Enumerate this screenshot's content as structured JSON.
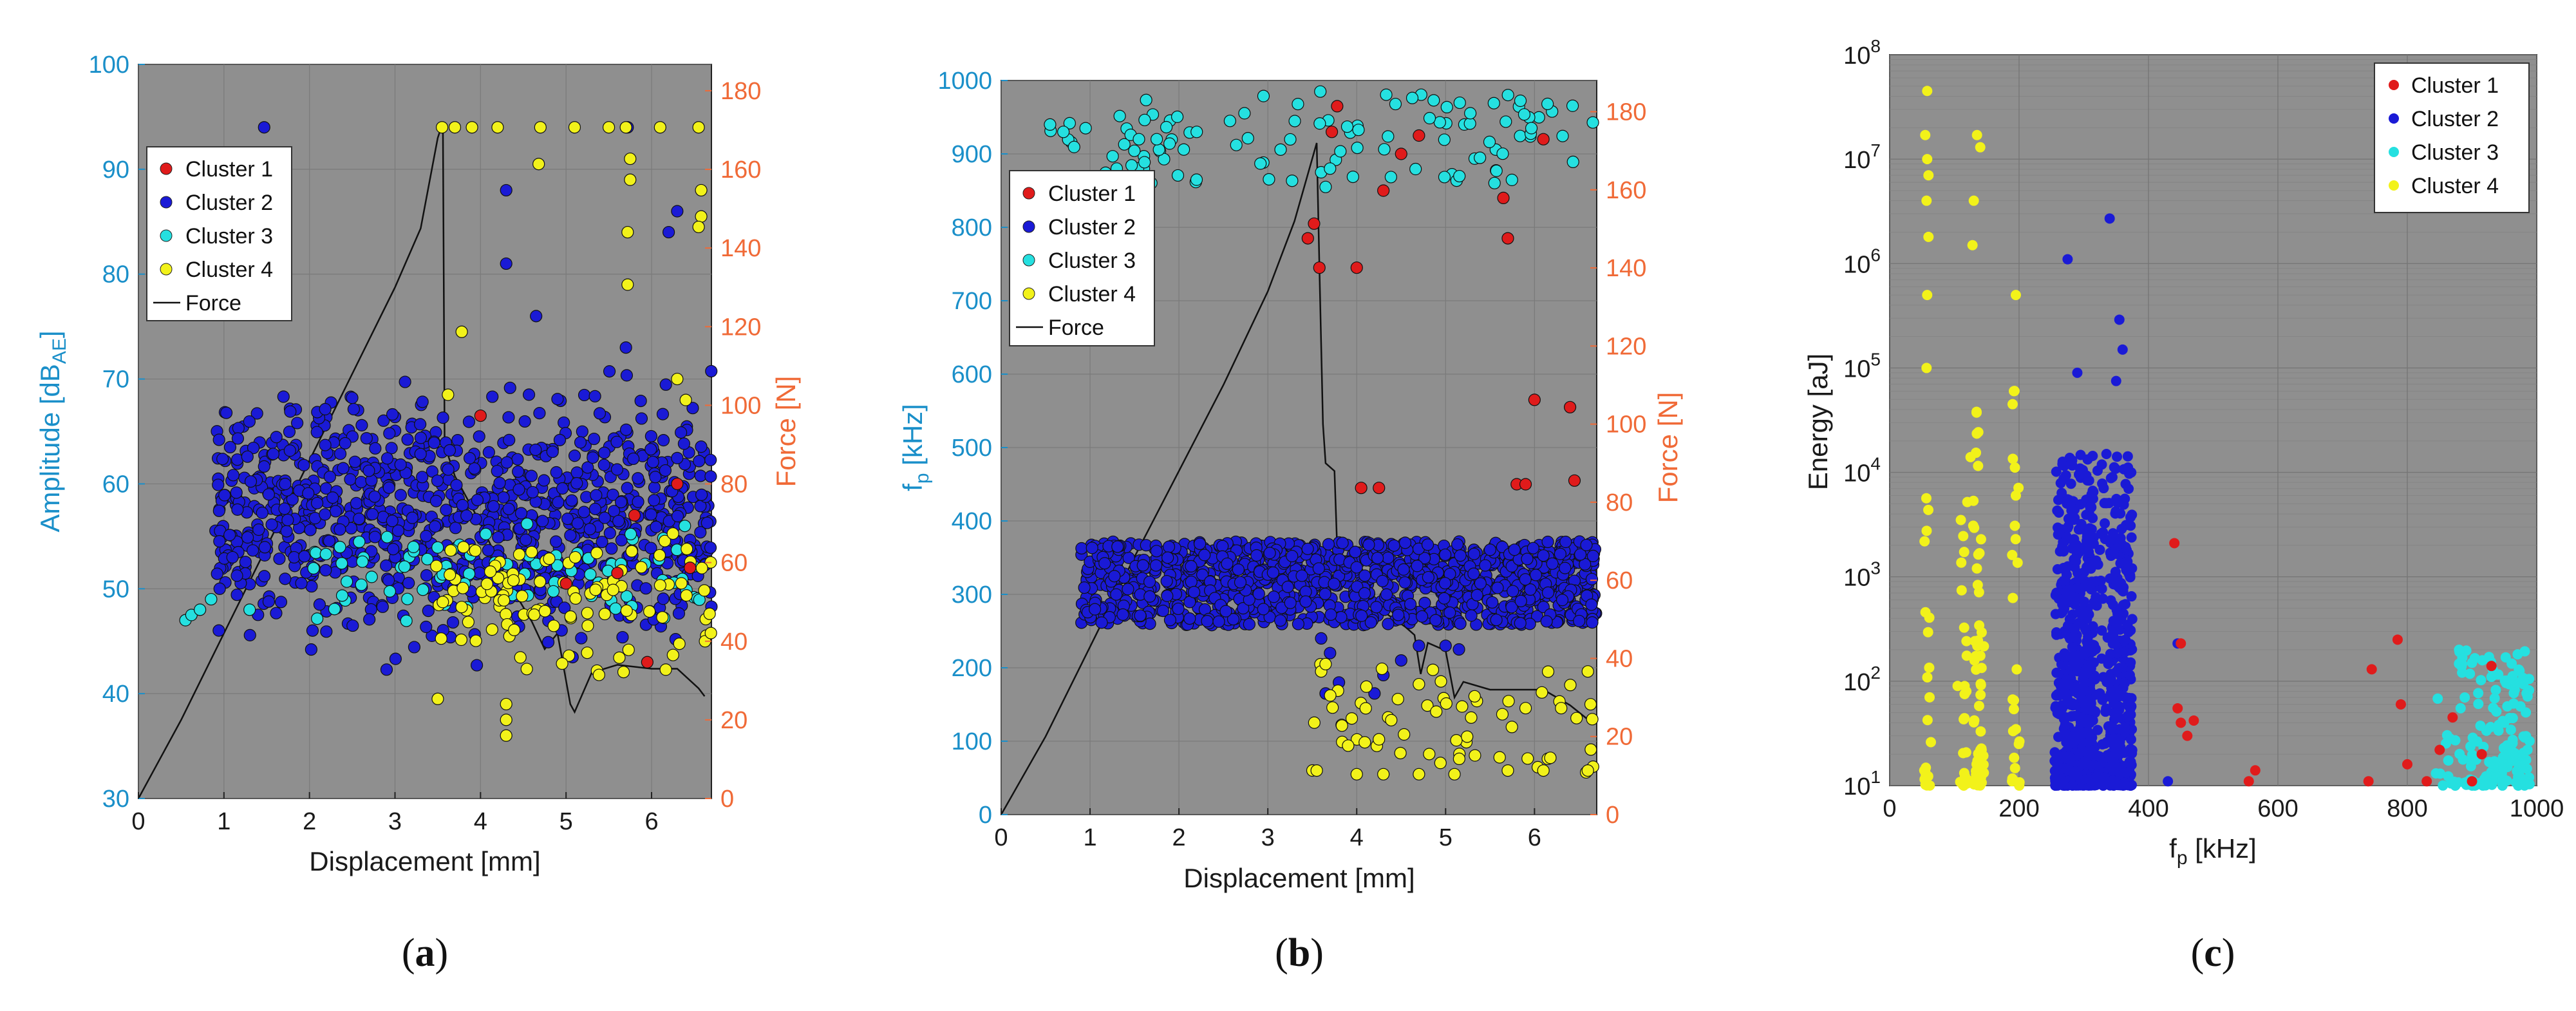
{
  "colors": {
    "cluster1": "#e01b1b",
    "cluster2": "#1a1ad6",
    "cluster3": "#25e0e0",
    "cluster4": "#f2f21a",
    "force": "#111111",
    "plot_bg": "#8f8f8f",
    "left_axis": "#1a8fc9",
    "right_axis": "#f06a37"
  },
  "panel_labels": [
    {
      "prefix": "(",
      "letter": "a",
      "suffix": ")"
    },
    {
      "prefix": "(",
      "letter": "b",
      "suffix": ")"
    },
    {
      "prefix": "(",
      "letter": "c",
      "suffix": ")"
    }
  ],
  "chart_data": [
    {
      "type": "scatter",
      "xlabel": "Displacement [mm]",
      "ylabel": "Amplitude [dB",
      "ylabel_sub": "AE",
      "ylabel_end": "]",
      "y2label": "Force [N]",
      "xlim": [
        0,
        6.7
      ],
      "ylim": [
        30,
        100
      ],
      "y2lim": [
        0,
        186.7
      ],
      "xticks": [
        "0",
        "1",
        "2",
        "3",
        "4",
        "5",
        "6"
      ],
      "yticks": [
        "30",
        "40",
        "50",
        "60",
        "70",
        "80",
        "90",
        "100"
      ],
      "y2ticks": [
        "0",
        "20",
        "40",
        "60",
        "80",
        "100",
        "120",
        "140",
        "160",
        "180"
      ],
      "grid": true,
      "legend": [
        "Cluster 1",
        "Cluster 2",
        "Cluster 3",
        "Cluster 4",
        "Force"
      ],
      "legend_position": "top-left",
      "series": [
        {
          "name": "Cluster 1",
          "points": [
            [
              4.0,
              66.5
            ],
            [
              5.0,
              50.5
            ],
            [
              5.6,
              51.5
            ],
            [
              5.8,
              57.0
            ],
            [
              5.95,
              43.0
            ],
            [
              6.3,
              60.0
            ],
            [
              6.45,
              52.0
            ]
          ]
        },
        {
          "name": "Cluster 2",
          "summary": {
            "n": 980,
            "x_range": [
              0.9,
              6.7
            ],
            "y_range": [
              41,
              73
            ]
          },
          "points": [
            [
              1.47,
              94
            ],
            [
              5.72,
              94
            ],
            [
              4.3,
              88
            ],
            [
              6.3,
              86
            ],
            [
              6.2,
              84
            ],
            [
              4.3,
              81
            ],
            [
              4.65,
              76
            ],
            [
              5.7,
              73
            ],
            [
              1.1,
              53
            ],
            [
              0.95,
              50
            ]
          ]
        },
        {
          "name": "Cluster 3",
          "summary": {
            "n": 85,
            "x_range": [
              2.0,
              6.7
            ],
            "y_range": [
              45,
              58
            ]
          },
          "points": [
            [
              0.55,
              47
            ],
            [
              0.62,
              47.5
            ],
            [
              0.72,
              48
            ],
            [
              0.85,
              49
            ],
            [
              1.3,
              48
            ]
          ]
        },
        {
          "name": "Cluster 4",
          "summary": {
            "n": 110,
            "x_range": [
              3.4,
              6.7
            ],
            "y_range": [
              39,
              58
            ]
          },
          "points": [
            [
              3.55,
              94
            ],
            [
              3.7,
              94
            ],
            [
              3.9,
              94
            ],
            [
              4.2,
              94
            ],
            [
              4.7,
              94
            ],
            [
              5.1,
              94
            ],
            [
              5.5,
              94
            ],
            [
              5.7,
              94
            ],
            [
              6.1,
              94
            ],
            [
              6.55,
              94
            ],
            [
              5.75,
              91
            ],
            [
              5.75,
              89
            ],
            [
              5.72,
              84
            ],
            [
              5.72,
              79
            ],
            [
              6.58,
              88
            ],
            [
              6.58,
              85.5
            ],
            [
              6.55,
              84.5
            ],
            [
              4.68,
              90.5
            ],
            [
              3.78,
              74.5
            ],
            [
              3.62,
              68.5
            ],
            [
              6.3,
              70
            ],
            [
              6.4,
              68
            ],
            [
              4.3,
              39
            ],
            [
              4.3,
              36
            ],
            [
              4.3,
              37.5
            ],
            [
              3.5,
              39.5
            ]
          ]
        }
      ],
      "force": [
        [
          0,
          0
        ],
        [
          0.5,
          20
        ],
        [
          1.0,
          42
        ],
        [
          1.5,
          64
        ],
        [
          2.0,
          86
        ],
        [
          2.5,
          108
        ],
        [
          3.0,
          130
        ],
        [
          3.3,
          145
        ],
        [
          3.5,
          168
        ],
        [
          3.56,
          172
        ],
        [
          3.58,
          90
        ],
        [
          3.7,
          82
        ],
        [
          3.8,
          78
        ],
        [
          4.0,
          70
        ],
        [
          4.3,
          56
        ],
        [
          4.6,
          45
        ],
        [
          4.75,
          38
        ],
        [
          4.9,
          42
        ],
        [
          5.05,
          24
        ],
        [
          5.1,
          22
        ],
        [
          5.3,
          32
        ],
        [
          5.6,
          34
        ],
        [
          6.0,
          33
        ],
        [
          6.3,
          33
        ],
        [
          6.55,
          28
        ],
        [
          6.62,
          26
        ]
      ]
    },
    {
      "type": "scatter",
      "xlabel": "Displacement [mm]",
      "ylabel": "f",
      "ylabel_sub": "p",
      "ylabel_end": " [kHz]",
      "y2label": "Force [N]",
      "xlim": [
        0,
        6.7
      ],
      "ylim": [
        0,
        1000
      ],
      "y2lim": [
        0,
        188
      ],
      "xticks": [
        "0",
        "1",
        "2",
        "3",
        "4",
        "5",
        "6"
      ],
      "yticks": [
        "0",
        "100",
        "200",
        "300",
        "400",
        "500",
        "600",
        "700",
        "800",
        "900",
        "1000"
      ],
      "y2ticks": [
        "0",
        "20",
        "40",
        "60",
        "80",
        "100",
        "120",
        "140",
        "160",
        "180"
      ],
      "grid": true,
      "legend": [
        "Cluster 1",
        "Cluster 2",
        "Cluster 3",
        "Cluster 4",
        "Force"
      ],
      "legend_position": "top-left",
      "series": [
        {
          "name": "Cluster 1",
          "points": [
            [
              3.45,
              785
            ],
            [
              3.52,
              805
            ],
            [
              3.58,
              745
            ],
            [
              3.72,
              930
            ],
            [
              3.78,
              965
            ],
            [
              4.0,
              745
            ],
            [
              4.05,
              445
            ],
            [
              4.25,
              445
            ],
            [
              4.3,
              850
            ],
            [
              4.5,
              900
            ],
            [
              5.7,
              785
            ],
            [
              5.65,
              840
            ],
            [
              5.8,
              450
            ],
            [
              5.9,
              450
            ],
            [
              6.0,
              565
            ],
            [
              6.4,
              555
            ],
            [
              6.45,
              455
            ],
            [
              6.1,
              920
            ],
            [
              4.7,
              925
            ]
          ]
        },
        {
          "name": "Cluster 2",
          "summary": {
            "n": 1200,
            "x_range": [
              0.9,
              6.7
            ],
            "y_range": [
              270,
              375
            ]
          },
          "points": [
            [
              3.6,
              240
            ],
            [
              3.7,
              220
            ],
            [
              4.3,
              190
            ],
            [
              4.5,
              210
            ],
            [
              4.7,
              230
            ],
            [
              5.0,
              230
            ],
            [
              5.15,
              225
            ],
            [
              4.2,
              165
            ],
            [
              3.65,
              165
            ],
            [
              3.8,
              180
            ]
          ]
        },
        {
          "name": "Cluster 3",
          "summary": {
            "n": 110,
            "x_range": [
              0.55,
              6.7
            ],
            "y_range": [
              860,
              985
            ]
          },
          "points": [
            [
              0.55,
              940
            ],
            [
              0.7,
              930
            ],
            [
              0.95,
              935
            ],
            [
              1.3,
              880
            ],
            [
              1.55,
              920
            ],
            [
              1.75,
              920
            ],
            [
              2.2,
              930
            ],
            [
              3.6,
              875
            ],
            [
              3.65,
              855
            ],
            [
              3.7,
              880
            ]
          ]
        },
        {
          "name": "Cluster 4",
          "summary": {
            "n": 60,
            "x_range": [
              3.5,
              6.7
            ],
            "y_range": [
              55,
              205
            ]
          },
          "points": [
            [
              3.55,
              60
            ],
            [
              3.6,
              195
            ],
            [
              3.65,
              205
            ],
            [
              4.0,
              55
            ],
            [
              4.3,
              55
            ],
            [
              4.7,
              55
            ],
            [
              5.1,
              55
            ],
            [
              5.7,
              60
            ],
            [
              6.1,
              60
            ],
            [
              6.6,
              60
            ],
            [
              6.65,
              130
            ],
            [
              6.6,
              195
            ],
            [
              6.3,
              145
            ],
            [
              5.9,
              145
            ]
          ]
        }
      ],
      "force": [
        [
          0,
          0
        ],
        [
          0.5,
          20
        ],
        [
          1.0,
          43
        ],
        [
          1.5,
          66
        ],
        [
          2.0,
          88
        ],
        [
          2.5,
          110
        ],
        [
          3.0,
          134
        ],
        [
          3.3,
          152
        ],
        [
          3.5,
          168
        ],
        [
          3.55,
          172
        ],
        [
          3.58,
          140
        ],
        [
          3.62,
          100
        ],
        [
          3.65,
          90
        ],
        [
          3.75,
          88
        ],
        [
          3.78,
          68
        ],
        [
          3.85,
          62
        ],
        [
          4.0,
          58
        ],
        [
          4.3,
          52
        ],
        [
          4.55,
          48
        ],
        [
          4.65,
          46
        ],
        [
          4.72,
          36
        ],
        [
          4.8,
          44
        ],
        [
          5.0,
          42
        ],
        [
          5.1,
          30
        ],
        [
          5.2,
          34
        ],
        [
          5.5,
          32
        ],
        [
          5.8,
          32
        ],
        [
          6.1,
          32
        ],
        [
          6.4,
          28
        ],
        [
          6.62,
          24
        ]
      ]
    },
    {
      "type": "scatter",
      "xlabel": "f",
      "xlabel_sub": "p",
      "xlabel_end": " [kHz]",
      "ylabel": "Energy [aJ]",
      "yscale": "log",
      "xlim": [
        0,
        1000
      ],
      "ylim": [
        10,
        100000000
      ],
      "xticks": [
        "0",
        "200",
        "400",
        "600",
        "800",
        "1000"
      ],
      "yticks": [
        {
          "base": "10",
          "exp": "1"
        },
        {
          "base": "10",
          "exp": "2"
        },
        {
          "base": "10",
          "exp": "3"
        },
        {
          "base": "10",
          "exp": "4"
        },
        {
          "base": "10",
          "exp": "5"
        },
        {
          "base": "10",
          "exp": "6"
        },
        {
          "base": "10",
          "exp": "7"
        },
        {
          "base": "10",
          "exp": "8"
        }
      ],
      "grid": true,
      "legend": [
        "Cluster 1",
        "Cluster 2",
        "Cluster 3",
        "Cluster 4"
      ],
      "legend_position": "top-right",
      "series": [
        {
          "name": "Cluster 1",
          "points": [
            [
              440,
              2100
            ],
            [
              450,
              230
            ],
            [
              445,
              55
            ],
            [
              450,
              40
            ],
            [
              460,
              30
            ],
            [
              470,
              42
            ],
            [
              555,
              11
            ],
            [
              565,
              14
            ],
            [
              745,
              130
            ],
            [
              740,
              11
            ],
            [
              785,
              250
            ],
            [
              790,
              60
            ],
            [
              800,
              16
            ],
            [
              830,
              11
            ],
            [
              850,
              22
            ],
            [
              870,
              45
            ],
            [
              900,
              11
            ],
            [
              915,
              20
            ],
            [
              930,
              140
            ]
          ]
        },
        {
          "name": "Cluster 2",
          "summary": {
            "n": 900,
            "x_range": [
              255,
              375
            ],
            "y_range": [
              10,
              15000
            ]
          },
          "points": [
            [
              275,
              1100000
            ],
            [
              290,
              90000
            ],
            [
              340,
              2700000
            ],
            [
              355,
              290000
            ],
            [
              360,
              150000
            ],
            [
              350,
              75000
            ],
            [
              335,
              15000
            ],
            [
              445,
              230
            ],
            [
              430,
              11
            ]
          ]
        },
        {
          "name": "Cluster 3",
          "summary": {
            "n": 160,
            "x_range": [
              840,
              990
            ],
            "y_range": [
              10,
              200
            ]
          },
          "points": [
            [
              880,
              200
            ],
            [
              900,
              150
            ],
            [
              930,
              110
            ]
          ]
        },
        {
          "name": "Cluster 4",
          "summary": {
            "n": 130,
            "x_range": [
              45,
              205
            ],
            "y_range": [
              10,
              45000000
            ]
          },
          "points": [
            [
              58,
              45000000
            ],
            [
              55,
              17000000
            ],
            [
              58,
              10000000
            ],
            [
              60,
              7000000
            ],
            [
              57,
              4000000
            ],
            [
              60,
              1800000
            ],
            [
              58,
              500000
            ],
            [
              57,
              100000
            ],
            [
              135,
              17000000
            ],
            [
              140,
              13000000
            ],
            [
              130,
              4000000
            ],
            [
              128,
              1500000
            ],
            [
              195,
              500000
            ],
            [
              190,
              45000
            ],
            [
              192,
              60000
            ],
            [
              195,
              6000
            ],
            [
              105,
              90
            ],
            [
              110,
              3500
            ],
            [
              120,
              5200
            ],
            [
              125,
              14000
            ]
          ]
        }
      ]
    }
  ]
}
